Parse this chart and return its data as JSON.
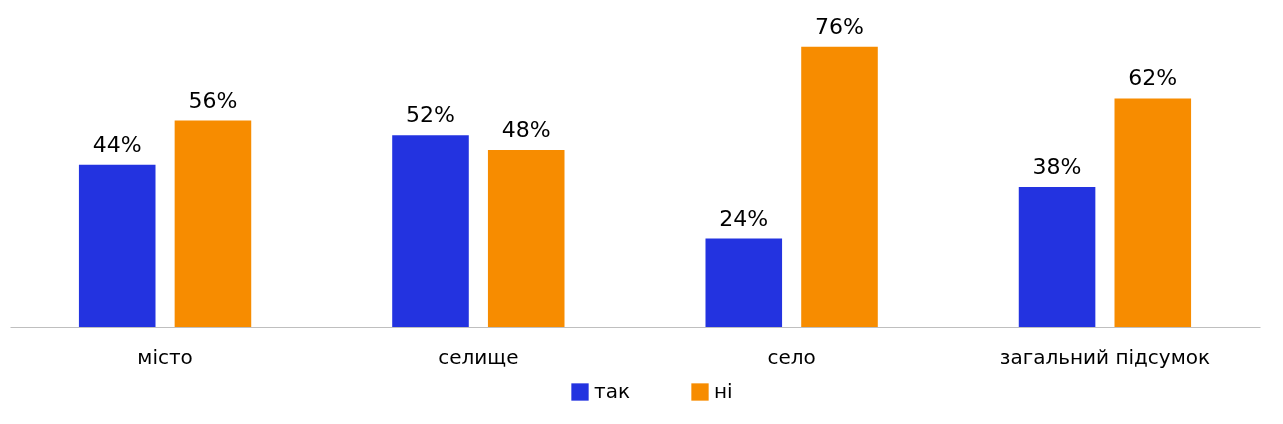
{
  "chart_data": {
    "type": "bar",
    "categories": [
      "місто",
      "селище",
      "село",
      "загальний підсумок"
    ],
    "series": [
      {
        "name": "так",
        "color": "#2333e0",
        "values": [
          44,
          52,
          24,
          38
        ],
        "value_labels": [
          "44%",
          "52%",
          "24%",
          "38%"
        ]
      },
      {
        "name": "ні",
        "color": "#f78c00",
        "values": [
          56,
          48,
          76,
          62
        ],
        "value_labels": [
          "56%",
          "48%",
          "76%",
          "62%"
        ]
      }
    ],
    "legend": "bottom",
    "grid": false
  }
}
